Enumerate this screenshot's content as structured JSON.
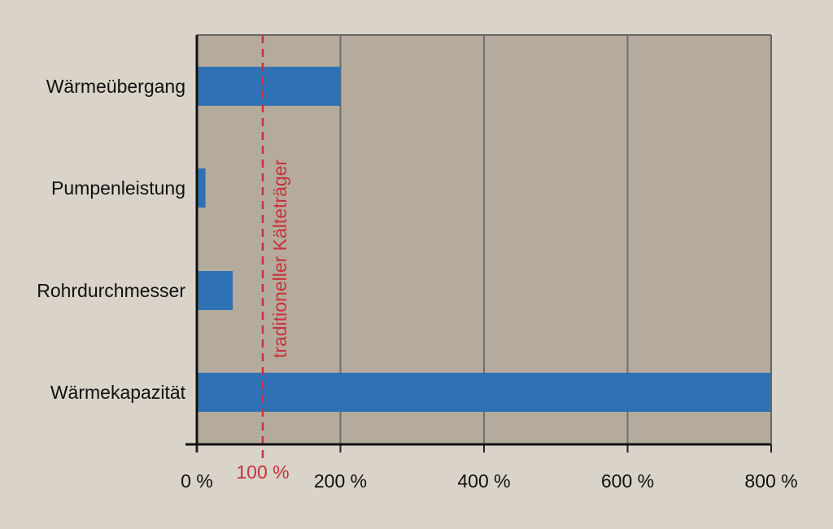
{
  "chart_data": {
    "type": "bar",
    "orientation": "horizontal",
    "categories": [
      "Wärmeübergang",
      "Pumpenleistung",
      "Rohrdurchmesser",
      "Wärmekapazität"
    ],
    "values": [
      200,
      12,
      50,
      800
    ],
    "xlim": [
      0,
      800
    ],
    "x_ticks": [
      0,
      200,
      400,
      600,
      800
    ],
    "x_tick_labels": [
      "0 %",
      "200 %",
      "400 %",
      "600 %",
      "800 %"
    ],
    "grid": "vertical",
    "reference_line": {
      "value": 100,
      "label": "traditioneller Kälteträger",
      "tick_label": "100 %",
      "style": "dashed"
    },
    "colors": {
      "bar": "#2e72b5",
      "plot_background": "#b4ab9c",
      "page_background": "#d9d3c9",
      "reference": "#c8323c"
    }
  }
}
